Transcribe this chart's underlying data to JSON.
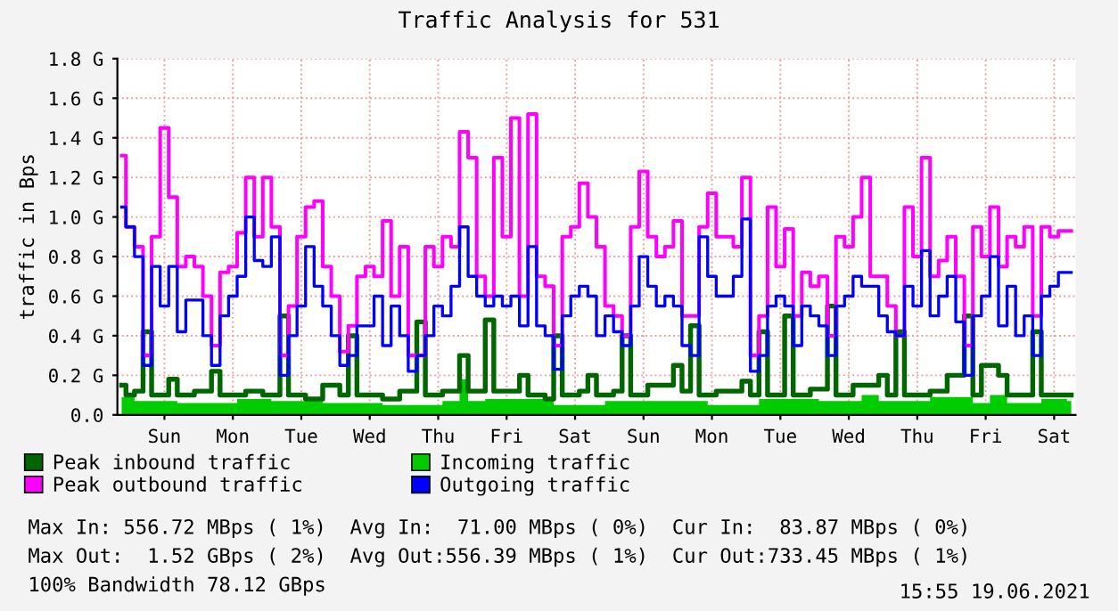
{
  "chart_data": {
    "type": "step",
    "title": "Traffic Analysis for 531",
    "ylabel": "traffic in Bps",
    "ylim": [
      0,
      1.8
    ],
    "yticks": [
      {
        "value": 0,
        "label": "0.0"
      },
      {
        "value": 0.2,
        "label": "0.2 G"
      },
      {
        "value": 0.4,
        "label": "0.4 G"
      },
      {
        "value": 0.6,
        "label": "0.6 G"
      },
      {
        "value": 0.8,
        "label": "0.8 G"
      },
      {
        "value": 1.0,
        "label": "1.0 G"
      },
      {
        "value": 1.2,
        "label": "1.2 G"
      },
      {
        "value": 1.4,
        "label": "1.4 G"
      },
      {
        "value": 1.6,
        "label": "1.6 G"
      },
      {
        "value": 1.8,
        "label": "1.8 G"
      }
    ],
    "grid": true,
    "legend": "bottom",
    "categories": [
      null,
      null,
      null,
      null,
      null,
      "Sun",
      null,
      null,
      null,
      null,
      null,
      null,
      null,
      "Mon",
      null,
      null,
      null,
      null,
      null,
      null,
      null,
      "Tue",
      null,
      null,
      null,
      null,
      null,
      null,
      null,
      "Wed",
      null,
      null,
      null,
      null,
      null,
      null,
      null,
      "Thu",
      null,
      null,
      null,
      null,
      null,
      null,
      null,
      "Fri",
      null,
      null,
      null,
      null,
      null,
      null,
      null,
      "Sat",
      null,
      null,
      null,
      null,
      null,
      null,
      null,
      "Sun",
      null,
      null,
      null,
      null,
      null,
      null,
      null,
      "Mon",
      null,
      null,
      null,
      null,
      null,
      null,
      null,
      "Tue",
      null,
      null,
      null,
      null,
      null,
      null,
      null,
      "Wed",
      null,
      null,
      null,
      null,
      null,
      null,
      null,
      "Thu",
      null,
      null,
      null,
      null,
      null,
      null,
      null,
      "Fri",
      null,
      null,
      null,
      null,
      null,
      null,
      null,
      "Sat",
      null,
      null
    ],
    "series": [
      {
        "name": "Peak inbound traffic",
        "color": "#006600",
        "values": [
          0.15,
          0.1,
          0.12,
          0.42,
          0.1,
          0.1,
          0.18,
          0.1,
          0.1,
          0.12,
          0.12,
          0.22,
          0.1,
          0.1,
          0.1,
          0.12,
          0.12,
          0.1,
          0.1,
          0.5,
          0.1,
          0.1,
          0.08,
          0.08,
          0.15,
          0.15,
          0.1,
          0.4,
          0.1,
          0.1,
          0.1,
          0.08,
          0.08,
          0.12,
          0.12,
          0.47,
          0.1,
          0.1,
          0.12,
          0.12,
          0.3,
          0.12,
          0.12,
          0.48,
          0.12,
          0.12,
          0.12,
          0.2,
          0.1,
          0.1,
          0.08,
          0.4,
          0.1,
          0.1,
          0.12,
          0.2,
          0.1,
          0.1,
          0.12,
          0.4,
          0.1,
          0.1,
          0.15,
          0.15,
          0.15,
          0.25,
          0.12,
          0.45,
          0.1,
          0.1,
          0.12,
          0.12,
          0.12,
          0.17,
          0.1,
          0.42,
          0.1,
          0.1,
          0.5,
          0.1,
          0.1,
          0.13,
          0.13,
          0.55,
          0.1,
          0.1,
          0.15,
          0.15,
          0.15,
          0.2,
          0.1,
          0.42,
          0.1,
          0.1,
          0.1,
          0.12,
          0.12,
          0.2,
          0.2,
          0.5,
          0.1,
          0.25,
          0.25,
          0.2,
          0.1,
          0.1,
          0.1,
          0.42,
          0.1,
          0.1,
          0.1,
          0.1
        ]
      },
      {
        "name": "Incoming traffic",
        "type": "area",
        "color": "#00cc00",
        "values": [
          0.09,
          0.09,
          0.07,
          0.07,
          0.07,
          0.07,
          0.07,
          0.06,
          0.06,
          0.06,
          0.06,
          0.06,
          0.06,
          0.06,
          0.08,
          0.08,
          0.08,
          0.08,
          0.07,
          0.07,
          0.07,
          0.07,
          0.07,
          0.07,
          0.06,
          0.06,
          0.06,
          0.06,
          0.06,
          0.06,
          0.06,
          0.05,
          0.05,
          0.05,
          0.05,
          0.05,
          0.05,
          0.05,
          0.07,
          0.07,
          0.18,
          0.07,
          0.07,
          0.08,
          0.08,
          0.08,
          0.08,
          0.08,
          0.08,
          0.08,
          0.08,
          0.05,
          0.05,
          0.05,
          0.05,
          0.05,
          0.05,
          0.07,
          0.07,
          0.07,
          0.07,
          0.07,
          0.07,
          0.07,
          0.07,
          0.07,
          0.07,
          0.07,
          0.07,
          0.05,
          0.05,
          0.05,
          0.05,
          0.05,
          0.05,
          0.08,
          0.08,
          0.08,
          0.08,
          0.08,
          0.08,
          0.08,
          0.07,
          0.07,
          0.07,
          0.07,
          0.07,
          0.1,
          0.1,
          0.07,
          0.07,
          0.07,
          0.07,
          0.07,
          0.07,
          0.09,
          0.09,
          0.09,
          0.09,
          0.09,
          0.06,
          0.06,
          0.1,
          0.1,
          0.06,
          0.06,
          0.06,
          0.06,
          0.08,
          0.08,
          0.08,
          0.07
        ]
      },
      {
        "name": "Peak outbound traffic",
        "color": "#ff00ff",
        "values": [
          1.31,
          0.95,
          0.85,
          0.3,
          0.9,
          1.45,
          1.1,
          0.75,
          0.8,
          0.75,
          0.6,
          0.35,
          0.72,
          0.75,
          0.92,
          1.2,
          0.9,
          1.2,
          0.95,
          0.3,
          0.55,
          0.9,
          1.05,
          1.08,
          0.75,
          0.6,
          0.32,
          0.45,
          0.7,
          0.75,
          0.7,
          0.98,
          0.6,
          0.85,
          0.3,
          0.3,
          0.85,
          0.75,
          0.9,
          0.85,
          1.43,
          1.3,
          0.7,
          0.6,
          1.3,
          0.9,
          1.5,
          0.6,
          1.52,
          0.7,
          0.65,
          0.35,
          0.9,
          0.95,
          1.17,
          1.0,
          0.85,
          0.55,
          0.5,
          0.4,
          0.95,
          1.23,
          0.9,
          0.8,
          0.85,
          0.98,
          0.5,
          0.5,
          0.95,
          1.12,
          0.9,
          0.9,
          0.85,
          1.2,
          0.3,
          0.5,
          1.05,
          0.75,
          0.94,
          0.5,
          0.72,
          0.65,
          0.7,
          0.4,
          0.9,
          0.85,
          1.0,
          1.2,
          0.7,
          0.7,
          0.55,
          0.4,
          1.05,
          0.8,
          1.3,
          0.7,
          0.78,
          0.9,
          0.7,
          0.35,
          0.95,
          0.8,
          1.05,
          0.75,
          0.9,
          0.85,
          0.95,
          0.5,
          0.95,
          0.9,
          0.93,
          0.93
        ]
      },
      {
        "name": "Outgoing traffic",
        "color": "#0000ff",
        "values": [
          1.05,
          0.95,
          0.8,
          0.25,
          0.75,
          0.55,
          0.75,
          0.42,
          0.58,
          0.58,
          0.4,
          0.25,
          0.5,
          0.6,
          0.7,
          1.0,
          0.78,
          0.75,
          0.9,
          0.2,
          0.4,
          0.55,
          0.85,
          0.65,
          0.55,
          0.4,
          0.25,
          0.3,
          0.45,
          0.45,
          0.6,
          0.35,
          0.55,
          0.4,
          0.22,
          0.3,
          0.4,
          0.55,
          0.5,
          0.65,
          0.95,
          0.7,
          0.6,
          0.55,
          0.6,
          0.55,
          0.6,
          0.45,
          0.85,
          0.45,
          0.4,
          0.23,
          0.5,
          0.6,
          0.65,
          0.6,
          0.4,
          0.5,
          0.42,
          0.35,
          0.55,
          0.8,
          0.65,
          0.55,
          0.6,
          0.55,
          0.35,
          0.3,
          0.9,
          0.7,
          0.6,
          0.6,
          0.7,
          0.99,
          0.22,
          0.3,
          0.55,
          0.6,
          0.55,
          0.35,
          0.55,
          0.5,
          0.45,
          0.3,
          0.55,
          0.6,
          0.7,
          0.65,
          0.65,
          0.5,
          0.42,
          0.4,
          0.65,
          0.55,
          0.83,
          0.5,
          0.6,
          0.7,
          0.47,
          0.2,
          0.5,
          0.6,
          0.8,
          0.45,
          0.65,
          0.4,
          0.5,
          0.3,
          0.6,
          0.65,
          0.72,
          0.72
        ]
      }
    ],
    "annotations": [
      "Max In: 556.72 MBps ( 1%)  Avg In:  71.00 MBps ( 0%)  Cur In:  83.87 MBps ( 0%)",
      "Max Out:  1.52 GBps ( 2%)  Avg Out:556.39 MBps ( 1%)  Cur Out:733.45 MBps ( 1%)",
      "100% Bandwidth 78.12 GBps",
      "15:55 19.06.2021"
    ]
  }
}
